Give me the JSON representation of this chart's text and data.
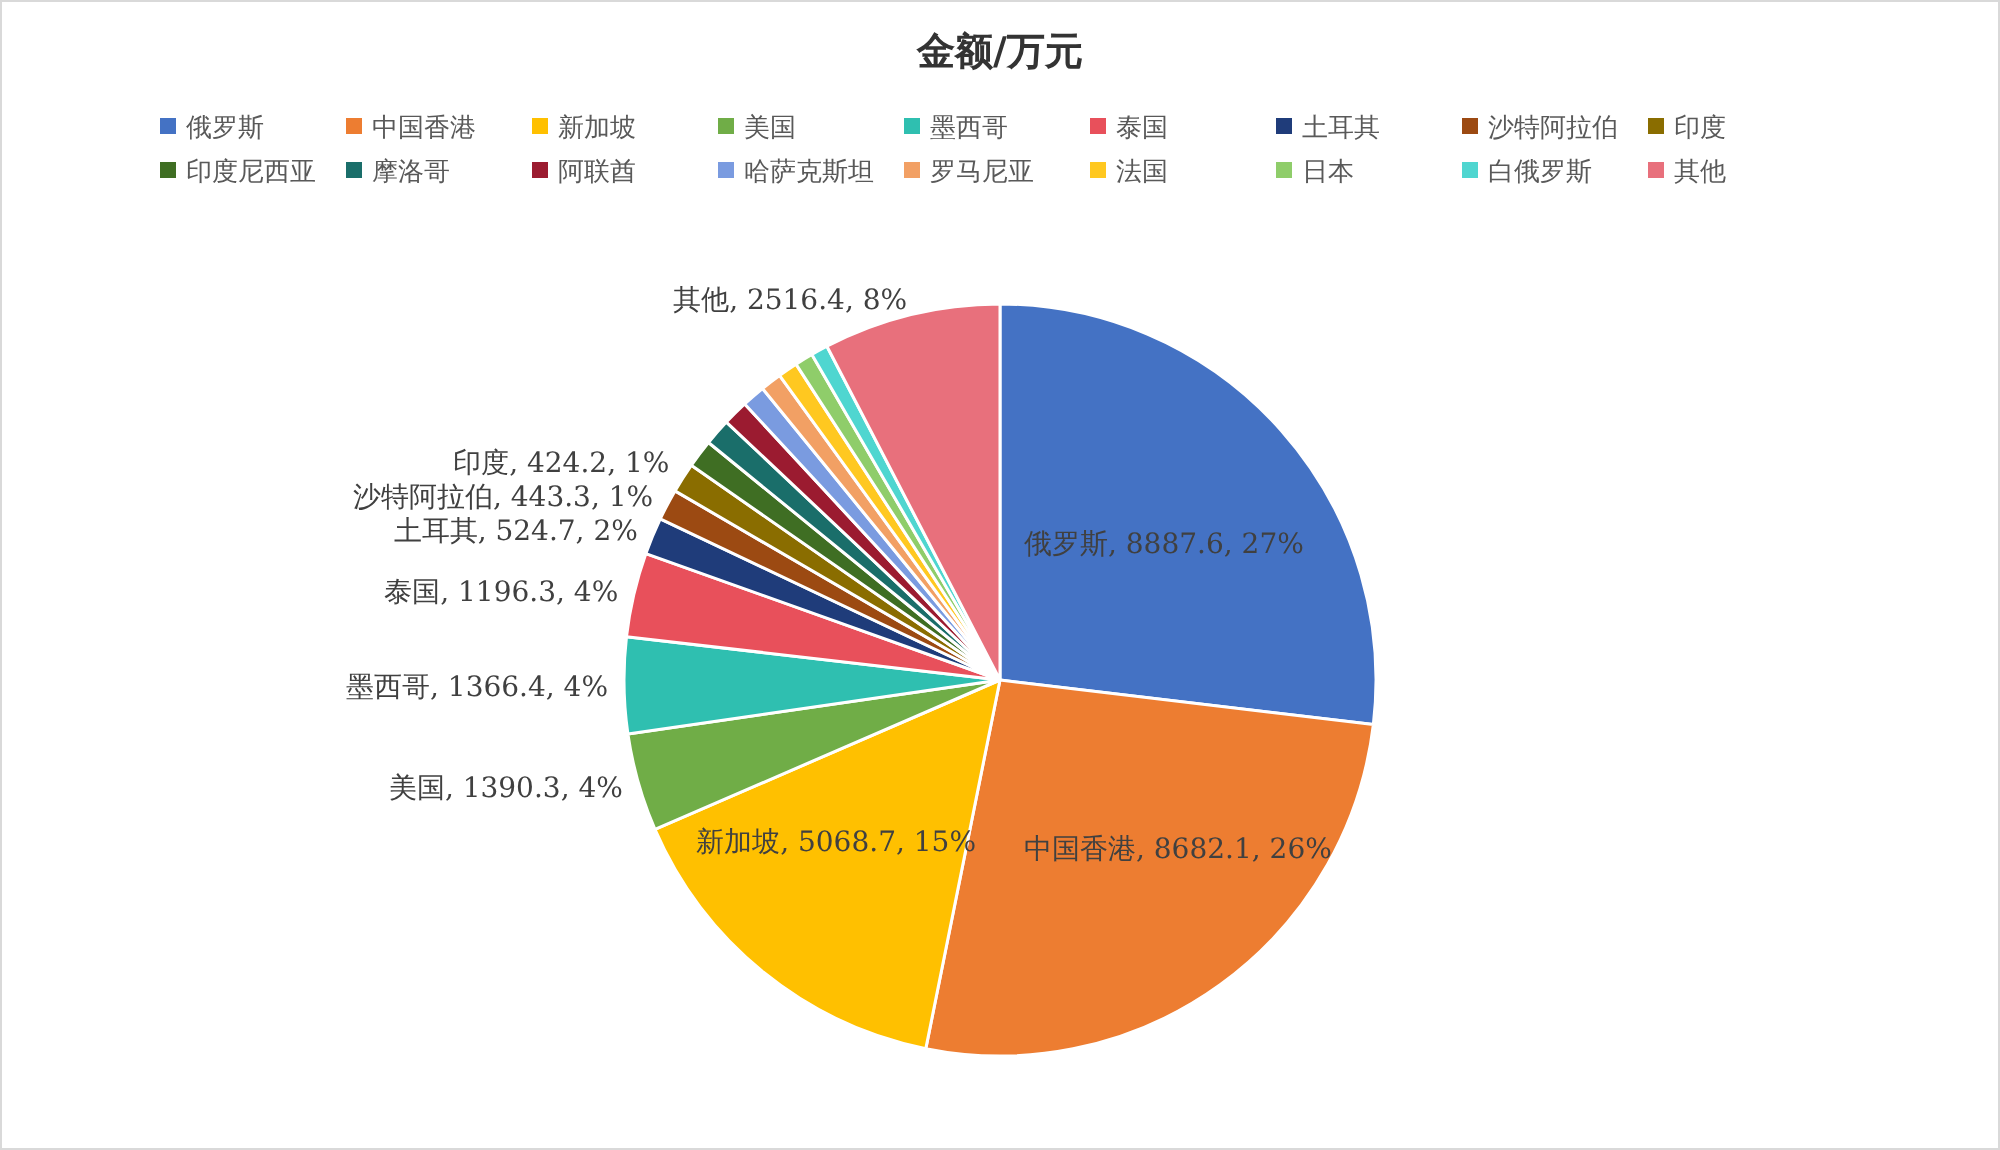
{
  "chart_data": {
    "type": "pie",
    "title": "金额/万元",
    "categories": [
      "俄罗斯",
      "中国香港",
      "新加坡",
      "美国",
      "墨西哥",
      "泰国",
      "土耳其",
      "沙特阿拉伯",
      "印度",
      "印度尼西亚",
      "摩洛哥",
      "阿联酋",
      "哈萨克斯坦",
      "罗马尼亚",
      "法国",
      "日本",
      "白俄罗斯",
      "其他"
    ],
    "values": [
      8887.6,
      8682.1,
      5068.7,
      1390.3,
      1366.4,
      1196.3,
      524.7,
      443.3,
      424.2,
      400,
      380,
      360,
      330,
      300,
      280,
      260,
      240,
      2516.4
    ],
    "colors": [
      "#4472c4",
      "#ed7d31",
      "#ffc000",
      "#70ad47",
      "#2fbfb0",
      "#e8505b",
      "#1f3c7a",
      "#9c4a12",
      "#8a6d00",
      "#3f6e23",
      "#1a6e6a",
      "#9b1b30",
      "#7a9be0",
      "#f2a064",
      "#ffc820",
      "#8fcd6a",
      "#4fd6d0",
      "#e8707c"
    ],
    "value_labels": [
      "俄罗斯, 8887.6, 27%",
      "中国香港, 8682.1, 26%",
      "新加坡, 5068.7, 15%",
      "美国, 1390.3, 4%",
      "墨西哥, 1366.4, 4%",
      "泰国, 1196.3, 4%",
      "土耳其, 524.7, 2%",
      "沙特阿拉伯, 443.3, 1%",
      "印度, 424.2, 1%",
      null,
      null,
      null,
      null,
      null,
      null,
      null,
      null,
      "其他, 2516.4, 8%"
    ],
    "legend": "top"
  }
}
